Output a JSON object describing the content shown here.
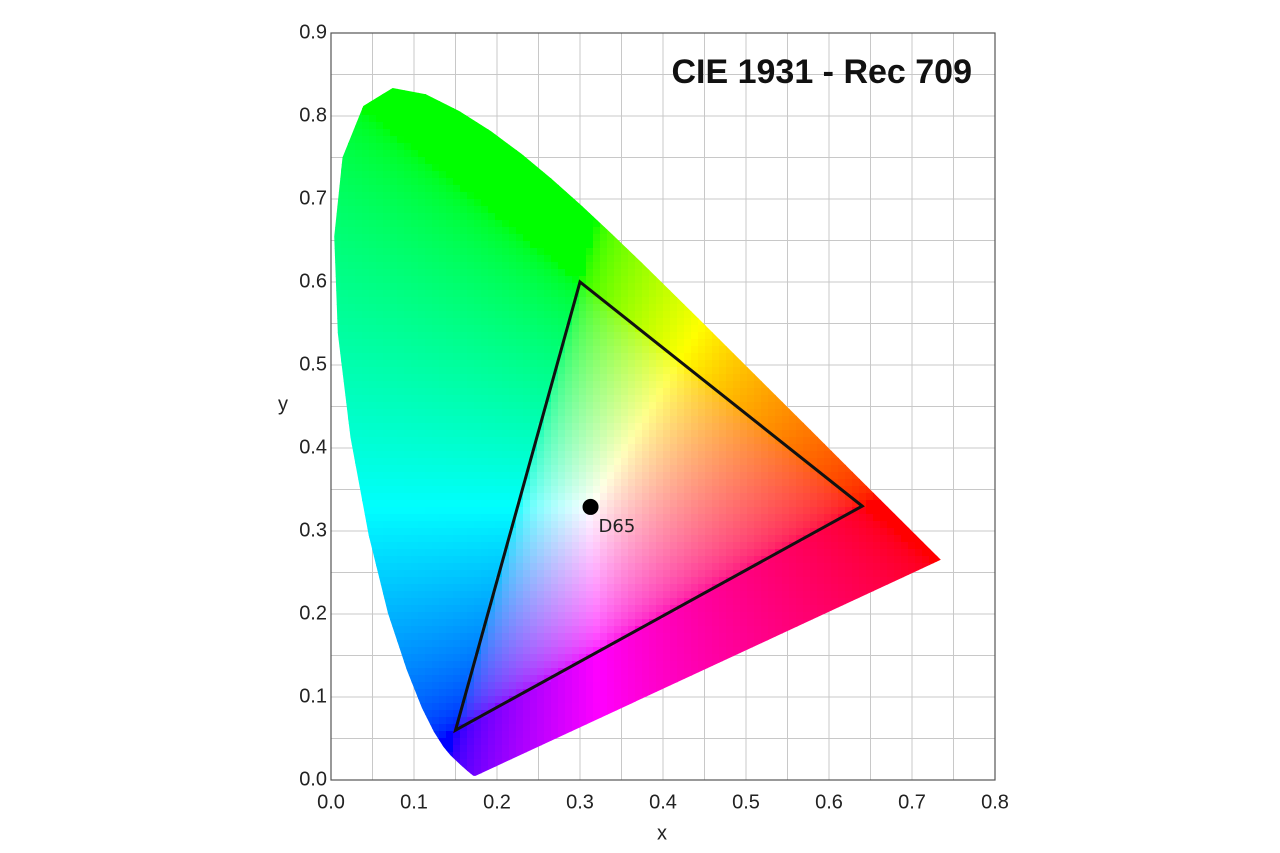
{
  "chart_data": {
    "type": "chromaticity",
    "title": "CIE 1931 - Rec 709",
    "xlabel": "x",
    "ylabel": "y",
    "xlim": [
      0,
      0.8
    ],
    "ylim": [
      0,
      0.9
    ],
    "xticks": [
      {
        "value": 0,
        "label": "0.0"
      },
      0.1,
      0.2,
      0.3,
      0.4,
      0.5,
      0.6,
      0.7,
      0.8
    ],
    "yticks": [
      {
        "value": 0,
        "label": "0.0"
      },
      0.1,
      0.2,
      0.3,
      0.4,
      0.5,
      0.6,
      0.7,
      0.8,
      0.9
    ],
    "xminorticks": [
      0.05,
      0.15,
      0.25,
      0.35,
      0.45,
      0.55,
      0.65,
      0.75
    ],
    "yminorticks": [
      0.05,
      0.15,
      0.25,
      0.35,
      0.45,
      0.55,
      0.65,
      0.75,
      0.85
    ],
    "grid": true,
    "locus": {
      "x": [
        0.1741,
        0.1714,
        0.1644,
        0.1566,
        0.144,
        0.1355,
        0.1241,
        0.1096,
        0.0913,
        0.0687,
        0.0454,
        0.0235,
        0.0082,
        0.0039,
        0.0139,
        0.0389,
        0.0743,
        0.1142,
        0.1547,
        0.1929,
        0.2296,
        0.2658,
        0.3016,
        0.3373,
        0.3731,
        0.4441,
        0.5125,
        0.5752,
        0.627,
        0.6915,
        0.719,
        0.7347
      ],
      "y": [
        0.005,
        0.0051,
        0.0109,
        0.0177,
        0.0297,
        0.0399,
        0.0578,
        0.0868,
        0.1327,
        0.2007,
        0.295,
        0.4127,
        0.5384,
        0.6548,
        0.7502,
        0.812,
        0.8338,
        0.8262,
        0.8059,
        0.7816,
        0.7543,
        0.7243,
        0.6923,
        0.6589,
        0.6245,
        0.5547,
        0.4866,
        0.4242,
        0.3725,
        0.3083,
        0.2809,
        0.2653
      ]
    },
    "gamut": {
      "x": [
        0.64,
        0.3,
        0.15
      ],
      "y": [
        0.33,
        0.6,
        0.06
      ],
      "color": "#111111"
    },
    "white_point": {
      "label": "D65",
      "x": 0.3127,
      "y": 0.329,
      "color": "#000000"
    }
  }
}
